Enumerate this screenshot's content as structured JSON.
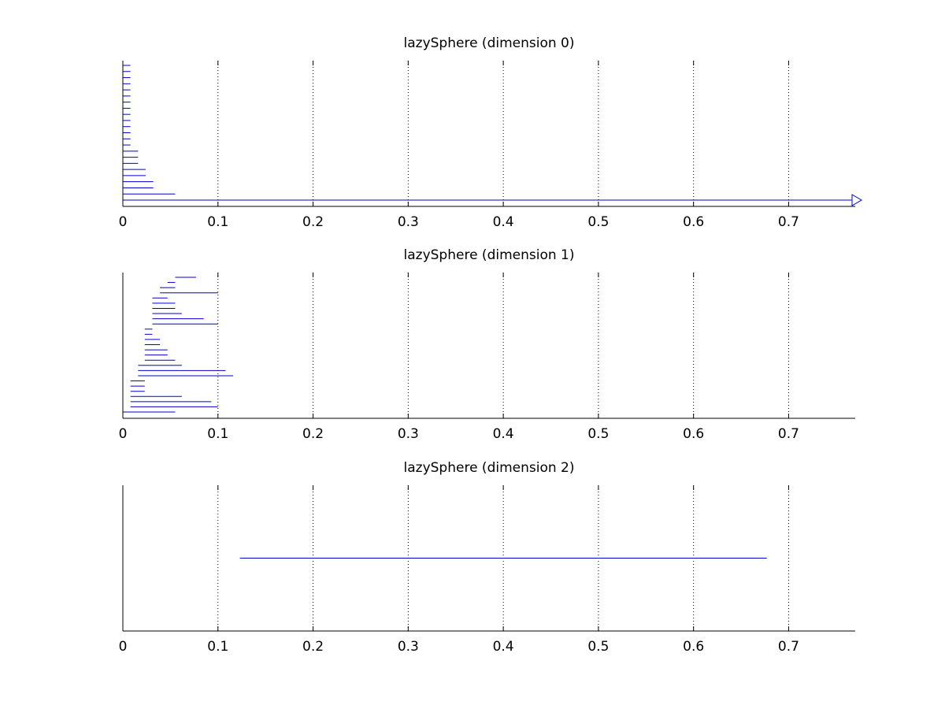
{
  "chart_data": [
    {
      "type": "barcode",
      "title": "lazySphere (dimension 0)",
      "xlim": [
        0,
        0.77
      ],
      "x_ticks": [
        "0",
        "0.1",
        "0.2",
        "0.3",
        "0.4",
        "0.5",
        "0.6",
        "0.7"
      ],
      "x_tick_values": [
        0,
        0.1,
        0.2,
        0.3,
        0.4,
        0.5,
        0.6,
        0.7
      ],
      "grid": "x dotted",
      "color": "#0000cc",
      "intervals": [
        [
          0,
          0.008
        ],
        [
          0,
          0.008
        ],
        [
          0,
          0.008
        ],
        [
          0,
          0.008
        ],
        [
          0,
          0.008
        ],
        [
          0,
          0.008
        ],
        [
          0,
          0.008
        ],
        [
          0,
          0.008
        ],
        [
          0,
          0.008
        ],
        [
          0,
          0.008
        ],
        [
          0,
          0.008
        ],
        [
          0,
          0.008
        ],
        [
          0,
          0.008
        ],
        [
          0,
          0.008
        ],
        [
          0,
          0.016
        ],
        [
          0,
          0.016
        ],
        [
          0,
          0.016
        ],
        [
          0,
          0.024
        ],
        [
          0,
          0.024
        ],
        [
          0,
          0.032
        ],
        [
          0,
          0.032
        ],
        [
          0,
          0.055
        ],
        [
          0,
          "infinity"
        ]
      ]
    },
    {
      "type": "barcode",
      "title": "lazySphere (dimension 1)",
      "xlim": [
        0,
        0.77
      ],
      "x_ticks": [
        "0",
        "0.1",
        "0.2",
        "0.3",
        "0.4",
        "0.5",
        "0.6",
        "0.7"
      ],
      "x_tick_values": [
        0,
        0.1,
        0.2,
        0.3,
        0.4,
        0.5,
        0.6,
        0.7
      ],
      "grid": "x dotted",
      "color": "#0000cc",
      "intervals": [
        [
          0.055,
          0.077
        ],
        [
          0.047,
          0.055
        ],
        [
          0.039,
          0.055
        ],
        [
          0.039,
          0.1
        ],
        [
          0.031,
          0.047
        ],
        [
          0.031,
          0.055
        ],
        [
          0.031,
          0.055
        ],
        [
          0.031,
          0.062
        ],
        [
          0.031,
          0.085
        ],
        [
          0.031,
          0.1
        ],
        [
          0.023,
          0.031
        ],
        [
          0.023,
          0.031
        ],
        [
          0.023,
          0.039
        ],
        [
          0.023,
          0.039
        ],
        [
          0.023,
          0.047
        ],
        [
          0.023,
          0.047
        ],
        [
          0.023,
          0.055
        ],
        [
          0.016,
          0.062
        ],
        [
          0.016,
          0.108
        ],
        [
          0.016,
          0.116
        ],
        [
          0.008,
          0.023
        ],
        [
          0.008,
          0.023
        ],
        [
          0.008,
          0.023
        ],
        [
          0.008,
          0.062
        ],
        [
          0.008,
          0.093
        ],
        [
          0.008,
          0.1
        ],
        [
          0,
          0.055
        ]
      ]
    },
    {
      "type": "barcode",
      "title": "lazySphere (dimension 2)",
      "xlim": [
        0,
        0.77
      ],
      "x_ticks": [
        "0",
        "0.1",
        "0.2",
        "0.3",
        "0.4",
        "0.5",
        "0.6",
        "0.7"
      ],
      "x_tick_values": [
        0,
        0.1,
        0.2,
        0.3,
        0.4,
        0.5,
        0.6,
        0.7
      ],
      "grid": "x dotted",
      "color": "#0000cc",
      "intervals": [
        [
          0.123,
          0.677
        ]
      ]
    }
  ]
}
